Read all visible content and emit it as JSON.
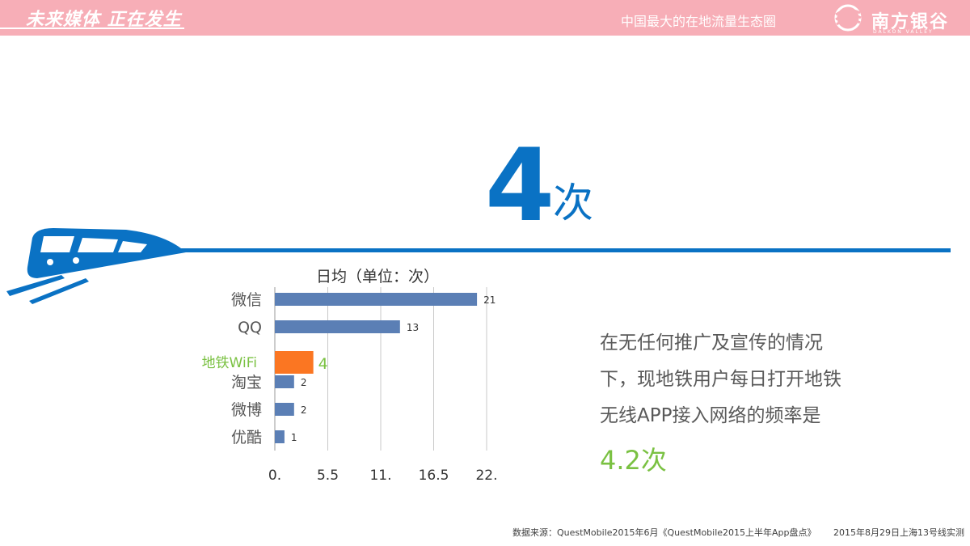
{
  "header": {
    "slogan": "未来媒体 正在发生",
    "tagline": "中国最大的在地流量生态圈",
    "logo_text": "南方银谷",
    "logo_sub": "DALKON VALLEY"
  },
  "hero": {
    "number": "4",
    "unit": "次"
  },
  "chart_data": {
    "type": "bar",
    "orientation": "horizontal",
    "title": "日均（单位：次）",
    "categories": [
      "微信",
      "QQ",
      "地铁WiFi",
      "淘宝",
      "微博",
      "优酷"
    ],
    "values": [
      21,
      13,
      4,
      2,
      2,
      1
    ],
    "value_labels": [
      "21",
      "13",
      "4",
      "2",
      "2",
      "1"
    ],
    "x_ticks": [
      "0.",
      "5.5",
      "11.",
      "16.5",
      "22."
    ],
    "x_range": [
      0,
      22
    ],
    "grid": "vertical",
    "bar_color": "#5b7fb5",
    "highlight_category": "地铁WiFi",
    "highlight_color": "#fb7622",
    "highlight_label_color": "#7ac142"
  },
  "description": {
    "lines": [
      "在无任何推广及宣传的情况",
      "下，现地铁用户每日打开地铁",
      "无线APP接入网络的频率是"
    ],
    "highlight": "4.2次"
  },
  "source": {
    "part1": "数据来源：QuestMobile2015年6月《QuestMobile2015上半年App盘点》",
    "part2": "2015年8月29日上海13号线实测"
  },
  "colors": {
    "topbar": "#f7aeb7",
    "accent_blue": "#0a72c4",
    "accent_green": "#7ac142"
  }
}
